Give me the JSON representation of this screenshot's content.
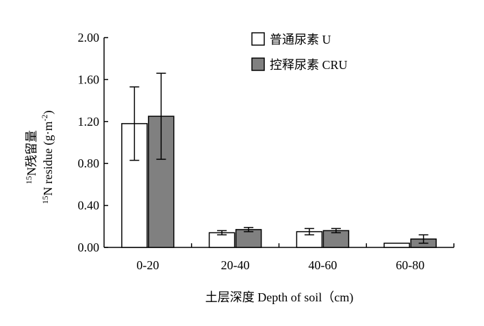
{
  "chart_data": {
    "type": "bar",
    "categories": [
      "0-20",
      "20-40",
      "40-60",
      "60-80"
    ],
    "series": [
      {
        "name": "普通尿素 U",
        "values": [
          1.18,
          0.14,
          0.15,
          0.04
        ],
        "errors": [
          0.35,
          0.02,
          0.03,
          0.0
        ],
        "color": "#ffffff"
      },
      {
        "name": "控释尿素 CRU",
        "values": [
          1.25,
          0.17,
          0.16,
          0.08
        ],
        "errors": [
          0.41,
          0.02,
          0.02,
          0.04
        ],
        "color": "#808080"
      }
    ],
    "y_ticks": [
      "0.00",
      "0.40",
      "0.80",
      "1.20",
      "1.60",
      "2.00"
    ],
    "ylim": [
      0,
      2.0
    ],
    "ylabel_line1": "15N残留量",
    "ylabel_line2": "15N residue (g·m-2)",
    "xlabel": "土层深度 Depth of soil（cm)",
    "legend_position": "top-right",
    "grid": false
  }
}
